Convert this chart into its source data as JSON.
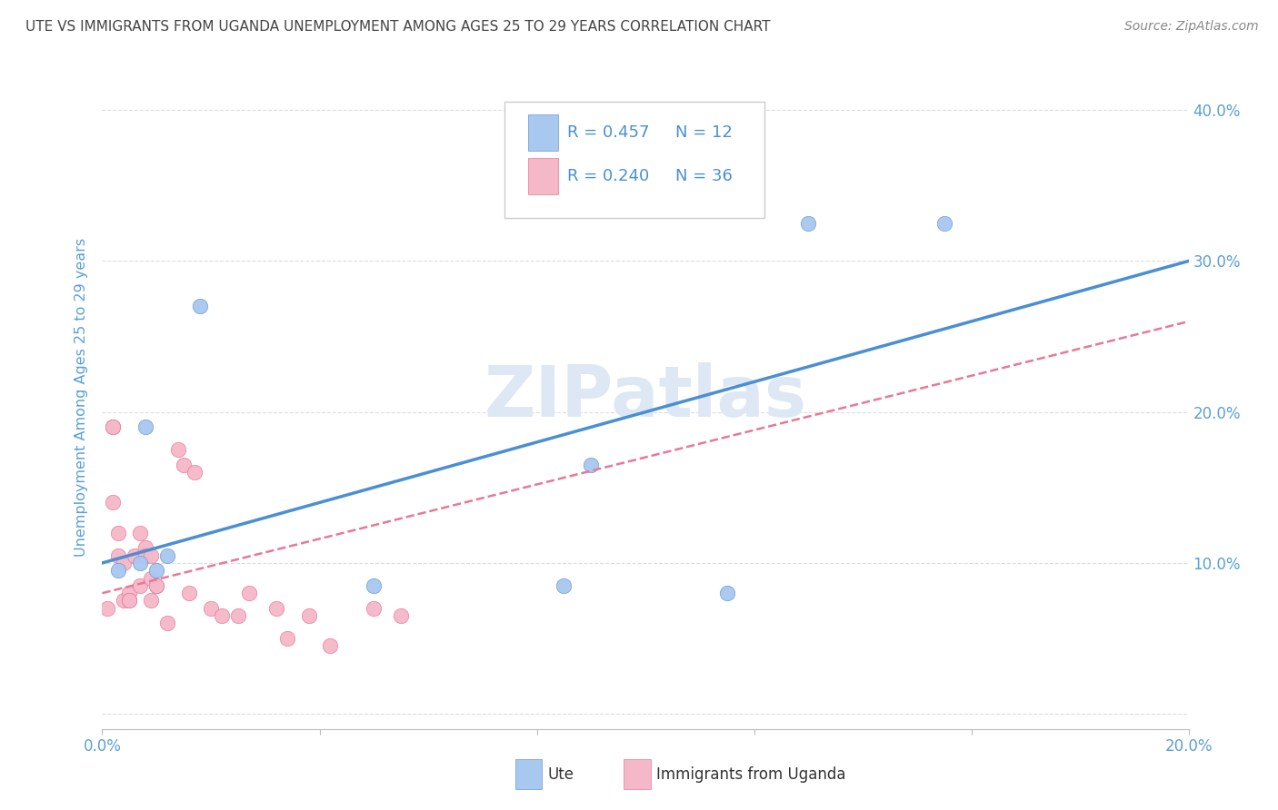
{
  "title": "UTE VS IMMIGRANTS FROM UGANDA UNEMPLOYMENT AMONG AGES 25 TO 29 YEARS CORRELATION CHART",
  "source": "Source: ZipAtlas.com",
  "ylabel": "Unemployment Among Ages 25 to 29 years",
  "xlim": [
    0.0,
    0.2
  ],
  "ylim": [
    -0.01,
    0.43
  ],
  "xticks": [
    0.0,
    0.04,
    0.08,
    0.12,
    0.16,
    0.2
  ],
  "yticks": [
    0.0,
    0.1,
    0.2,
    0.3,
    0.4
  ],
  "xtick_labels": [
    "0.0%",
    "",
    "",
    "",
    "",
    "20.0%"
  ],
  "ytick_labels_right": [
    "",
    "10.0%",
    "20.0%",
    "30.0%",
    "40.0%"
  ],
  "ute_color": "#a8c8f0",
  "ute_edge_color": "#6699cc",
  "immigrants_color": "#f5b8c8",
  "immigrants_edge_color": "#e87898",
  "regression_ute_color": "#4a8fd4",
  "regression_immigrants_color": "#e87898",
  "watermark_color": "#dde8f4",
  "legend_R_ute": "R = 0.457",
  "legend_N_ute": "N = 12",
  "legend_R_imm": "R = 0.240",
  "legend_N_imm": "N = 36",
  "ute_x": [
    0.003,
    0.007,
    0.008,
    0.01,
    0.012,
    0.018,
    0.05,
    0.085,
    0.09,
    0.115,
    0.13,
    0.155
  ],
  "ute_y": [
    0.095,
    0.1,
    0.19,
    0.095,
    0.105,
    0.27,
    0.085,
    0.085,
    0.165,
    0.08,
    0.325,
    0.325
  ],
  "immigrants_x": [
    0.001,
    0.002,
    0.002,
    0.002,
    0.003,
    0.003,
    0.004,
    0.004,
    0.005,
    0.005,
    0.005,
    0.006,
    0.007,
    0.007,
    0.008,
    0.008,
    0.009,
    0.009,
    0.009,
    0.01,
    0.01,
    0.012,
    0.014,
    0.015,
    0.016,
    0.017,
    0.02,
    0.022,
    0.025,
    0.027,
    0.032,
    0.034,
    0.038,
    0.042,
    0.05,
    0.055
  ],
  "immigrants_y": [
    0.07,
    0.19,
    0.19,
    0.14,
    0.12,
    0.105,
    0.1,
    0.075,
    0.08,
    0.075,
    0.075,
    0.105,
    0.085,
    0.12,
    0.11,
    0.105,
    0.105,
    0.09,
    0.075,
    0.085,
    0.085,
    0.06,
    0.175,
    0.165,
    0.08,
    0.16,
    0.07,
    0.065,
    0.065,
    0.08,
    0.07,
    0.05,
    0.065,
    0.045,
    0.07,
    0.065
  ],
  "background_color": "#ffffff",
  "grid_color": "#dddddd",
  "title_color": "#444444",
  "axis_label_color": "#5a9fd4",
  "tick_label_color": "#5a9fd4",
  "legend_text_color": "#4a8fd4",
  "marker_size": 100
}
